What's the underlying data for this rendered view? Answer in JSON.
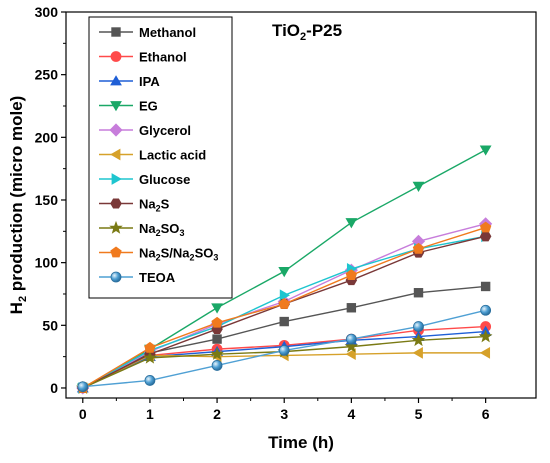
{
  "chart_data": {
    "type": "line",
    "annotation": "TiO2-P25",
    "annotation_parts": {
      "base": "TiO",
      "sub": "2",
      "tail": "-P25"
    },
    "xlabel": "Time (h)",
    "ylabel_parts": {
      "base": "H",
      "sub": "2",
      "tail": " production (micro mole)"
    },
    "x": [
      0,
      1,
      2,
      3,
      4,
      5,
      6
    ],
    "xlim": [
      -0.25,
      6.75
    ],
    "ylim": [
      -8,
      300
    ],
    "x_ticks": [
      0,
      1,
      2,
      3,
      4,
      5,
      6
    ],
    "y_ticks": [
      0,
      50,
      100,
      150,
      200,
      250,
      300
    ],
    "grid": false,
    "legend_position": "top-left",
    "series": [
      {
        "name": "Methanol",
        "name_parts": [
          {
            "t": "Methanol"
          }
        ],
        "color": "#555555",
        "marker": "square",
        "values": [
          0,
          28,
          39,
          53,
          64,
          76,
          81
        ]
      },
      {
        "name": "Ethanol",
        "name_parts": [
          {
            "t": "Ethanol"
          }
        ],
        "color": "#ff4a4a",
        "marker": "circle",
        "values": [
          0,
          26,
          31,
          34,
          39,
          46,
          49
        ]
      },
      {
        "name": "IPA",
        "name_parts": [
          {
            "t": "IPA"
          }
        ],
        "color": "#1f5fd6",
        "marker": "triangle-up",
        "values": [
          0,
          25,
          29,
          33,
          38,
          41,
          45
        ]
      },
      {
        "name": "EG",
        "name_parts": [
          {
            "t": "EG"
          }
        ],
        "color": "#1aa867",
        "marker": "triangle-down",
        "values": [
          0,
          31,
          64,
          93,
          132,
          161,
          190
        ]
      },
      {
        "name": "Glycerol",
        "name_parts": [
          {
            "t": "Glycerol"
          }
        ],
        "color": "#c77ddb",
        "marker": "diamond",
        "values": [
          0,
          29,
          51,
          69,
          94,
          117,
          131
        ]
      },
      {
        "name": "Lactic acid",
        "name_parts": [
          {
            "t": "Lactic acid"
          }
        ],
        "color": "#d6a12a",
        "marker": "triangle-left",
        "values": [
          0,
          26,
          25,
          26,
          27,
          28,
          28
        ]
      },
      {
        "name": "Glucose",
        "name_parts": [
          {
            "t": "Glucose"
          }
        ],
        "color": "#1ec5cf",
        "marker": "triangle-right",
        "values": [
          0,
          30,
          49,
          74,
          95,
          111,
          121
        ]
      },
      {
        "name": "Na2S",
        "name_parts": [
          {
            "t": "Na"
          },
          {
            "t": "2",
            "sub": true
          },
          {
            "t": "S"
          }
        ],
        "color": "#7a3838",
        "marker": "hexagon",
        "values": [
          0,
          27,
          47,
          67,
          86,
          108,
          121
        ]
      },
      {
        "name": "Na2SO3",
        "name_parts": [
          {
            "t": "Na"
          },
          {
            "t": "2",
            "sub": true
          },
          {
            "t": "SO"
          },
          {
            "t": "3",
            "sub": true
          }
        ],
        "color": "#7a7a14",
        "marker": "star",
        "values": [
          0,
          24,
          27,
          29,
          33,
          38,
          41
        ]
      },
      {
        "name": "Na2S/Na2SO3",
        "name_parts": [
          {
            "t": "Na"
          },
          {
            "t": "2",
            "sub": true
          },
          {
            "t": "S/Na"
          },
          {
            "t": "2",
            "sub": true
          },
          {
            "t": "SO"
          },
          {
            "t": "3",
            "sub": true
          }
        ],
        "color": "#f07a1e",
        "marker": "pentagon",
        "values": [
          0,
          32,
          52,
          67,
          90,
          111,
          128
        ]
      },
      {
        "name": "TEOA",
        "name_parts": [
          {
            "t": "TEOA"
          }
        ],
        "color": "#4fa0d4",
        "marker": "sphere",
        "values": [
          1,
          6,
          18,
          30,
          39,
          49,
          62
        ]
      }
    ]
  }
}
